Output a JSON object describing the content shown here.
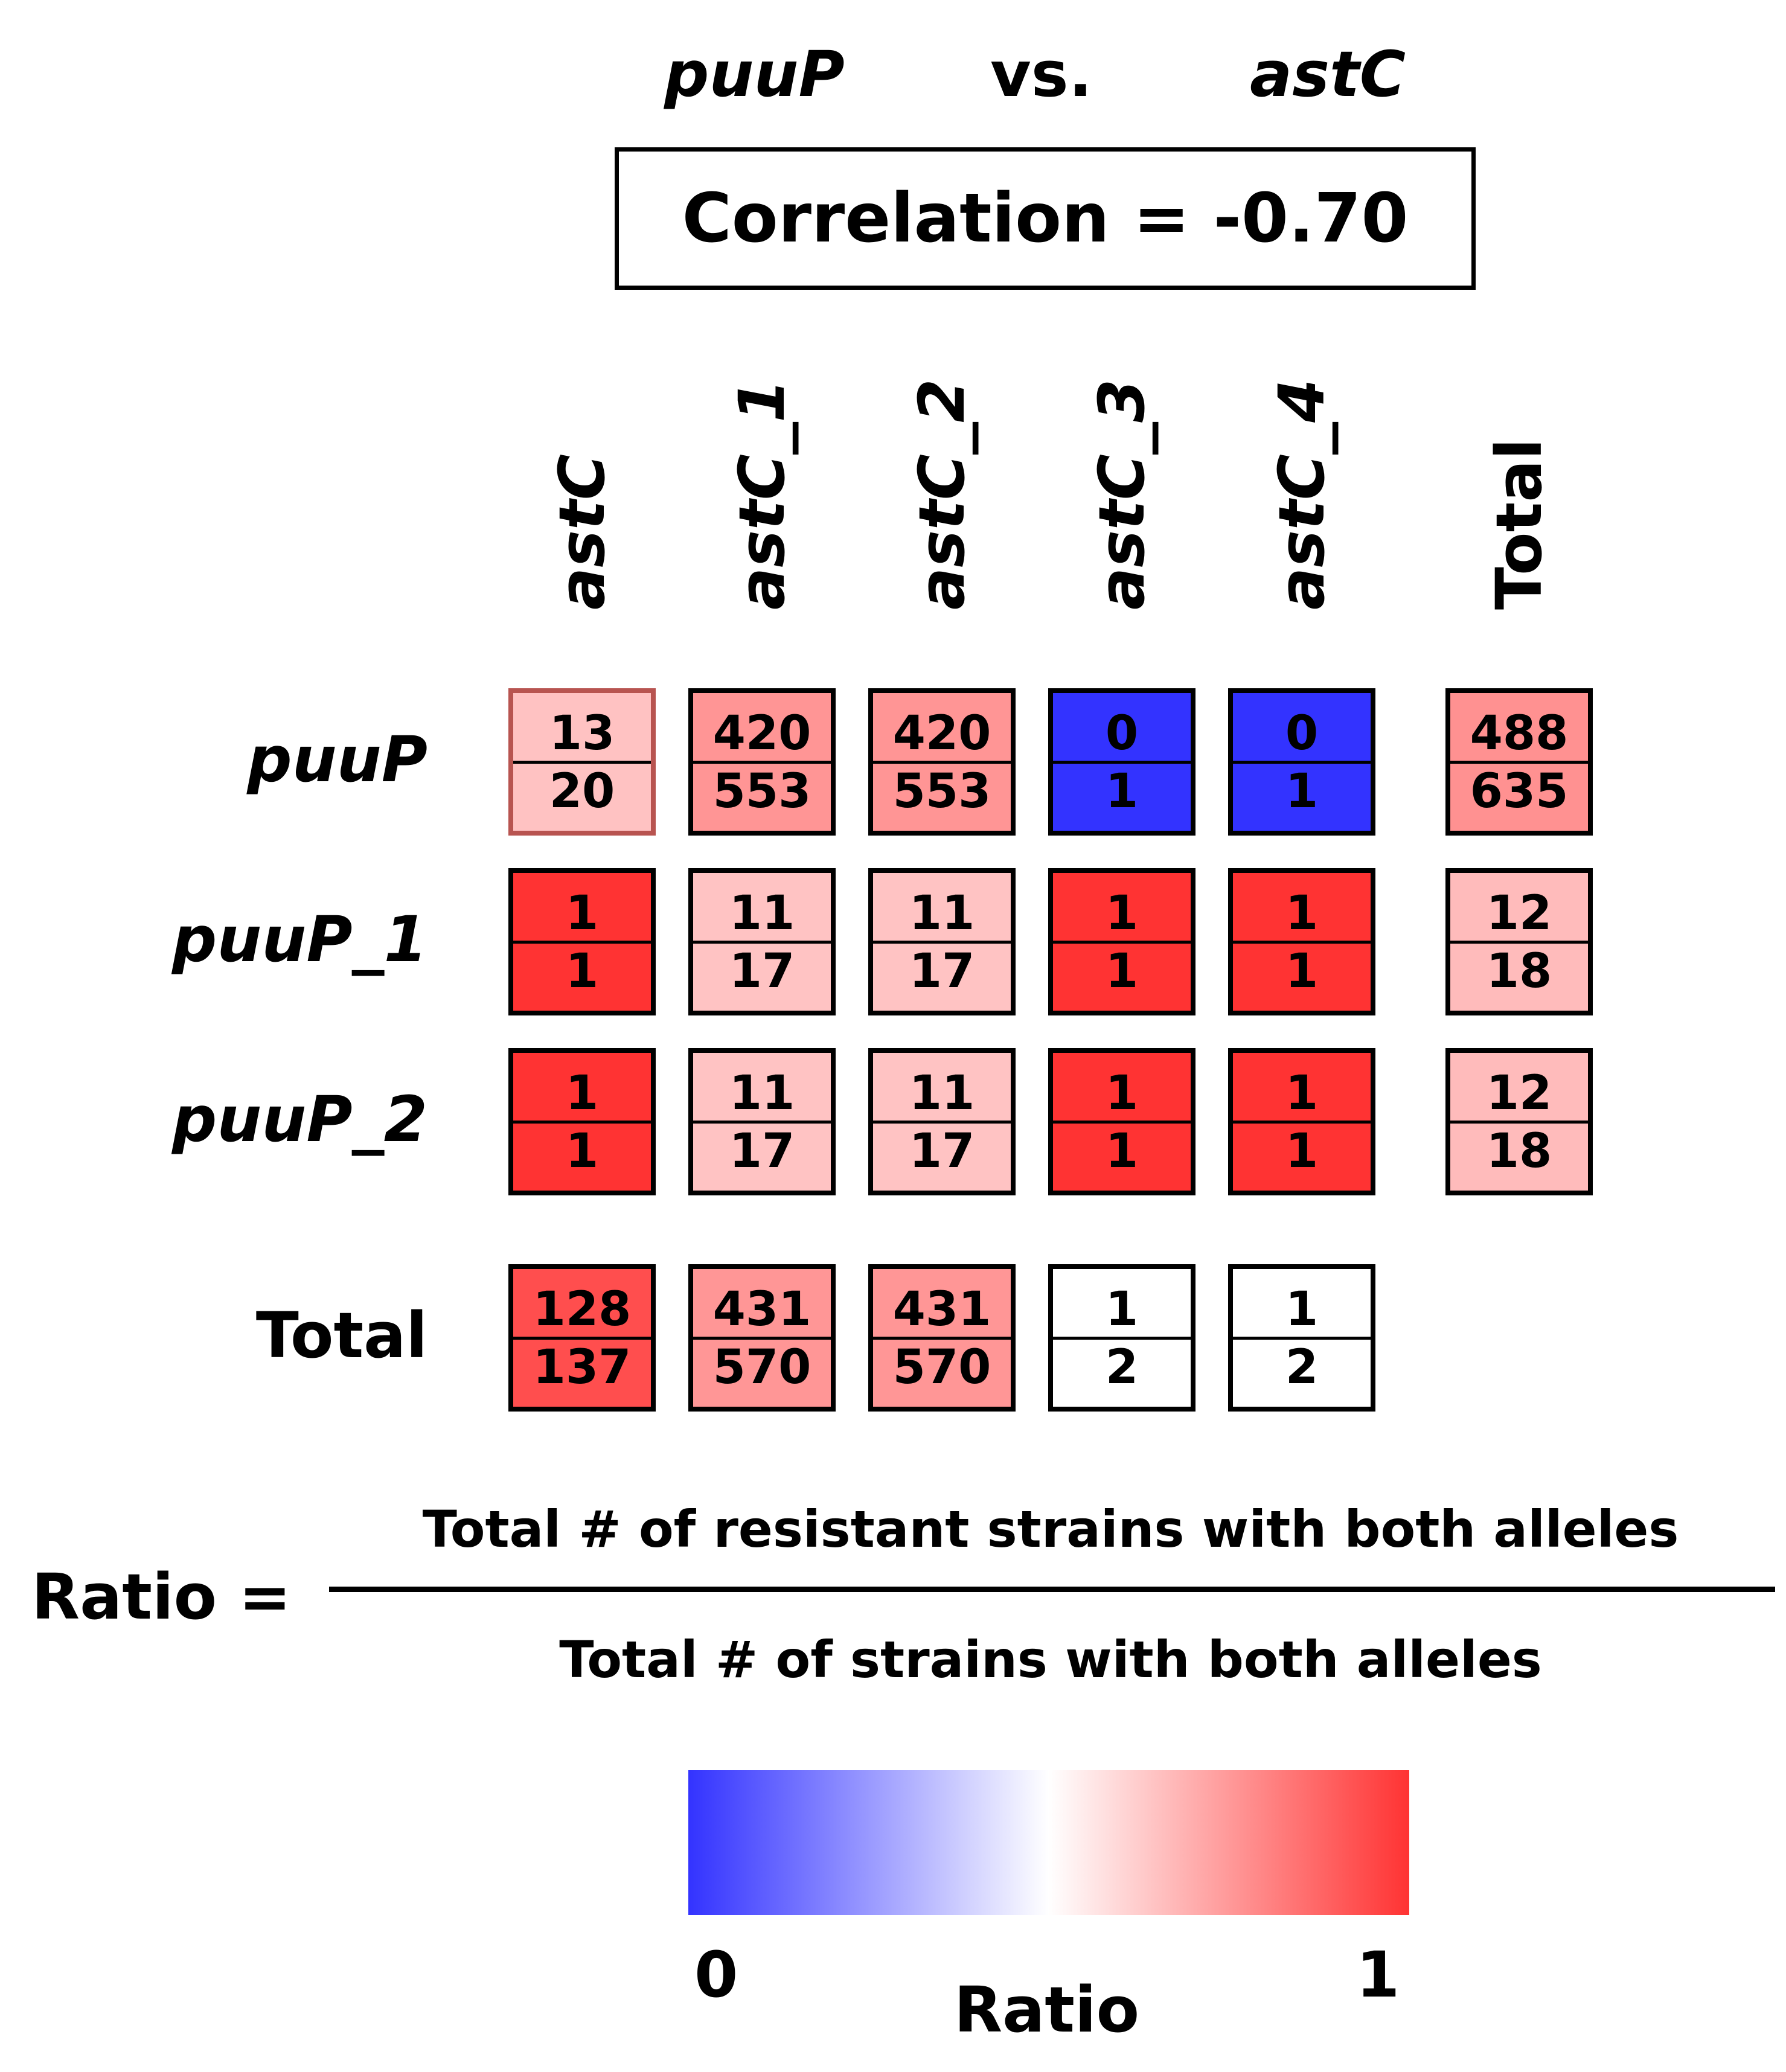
{
  "header": {
    "gene_a": "puuP",
    "vs": "vs.",
    "gene_b": "astC",
    "correlation_label": "Correlation = -0.70"
  },
  "chart_data": {
    "type": "heatmap",
    "columns": [
      "astC",
      "astC_1",
      "astC_2",
      "astC_3",
      "astC_4",
      "Total"
    ],
    "rows": [
      "puuP",
      "puuP_1",
      "puuP_2",
      "Total"
    ],
    "cells": [
      [
        {
          "num": 13,
          "den": 20
        },
        {
          "num": 420,
          "den": 553
        },
        {
          "num": 420,
          "den": 553
        },
        {
          "num": 0,
          "den": 1
        },
        {
          "num": 0,
          "den": 1
        },
        {
          "num": 488,
          "den": 635
        }
      ],
      [
        {
          "num": 1,
          "den": 1
        },
        {
          "num": 11,
          "den": 17
        },
        {
          "num": 11,
          "den": 17
        },
        {
          "num": 1,
          "den": 1
        },
        {
          "num": 1,
          "den": 1
        },
        {
          "num": 12,
          "den": 18
        }
      ],
      [
        {
          "num": 1,
          "den": 1
        },
        {
          "num": 11,
          "den": 17
        },
        {
          "num": 11,
          "den": 17
        },
        {
          "num": 1,
          "den": 1
        },
        {
          "num": 1,
          "den": 1
        },
        {
          "num": 12,
          "den": 18
        }
      ],
      [
        {
          "num": 128,
          "den": 137
        },
        {
          "num": 431,
          "den": 570
        },
        {
          "num": 431,
          "den": 570
        },
        {
          "num": 1,
          "den": 2
        },
        {
          "num": 1,
          "den": 2
        },
        null
      ]
    ],
    "highlight_cell": {
      "row": 0,
      "col": 0,
      "border_color": "#b85450"
    },
    "colorscale": {
      "min_color": "#3333ff",
      "mid_color": "#ffffff",
      "max_color": "#ff3333"
    },
    "colorbar": {
      "min_label": "0",
      "max_label": "1",
      "title": "Ratio"
    }
  },
  "formula": {
    "label": "Ratio =",
    "numerator": "Total # of resistant strains with both alleles",
    "denominator": "Total # of strains with both alleles"
  }
}
